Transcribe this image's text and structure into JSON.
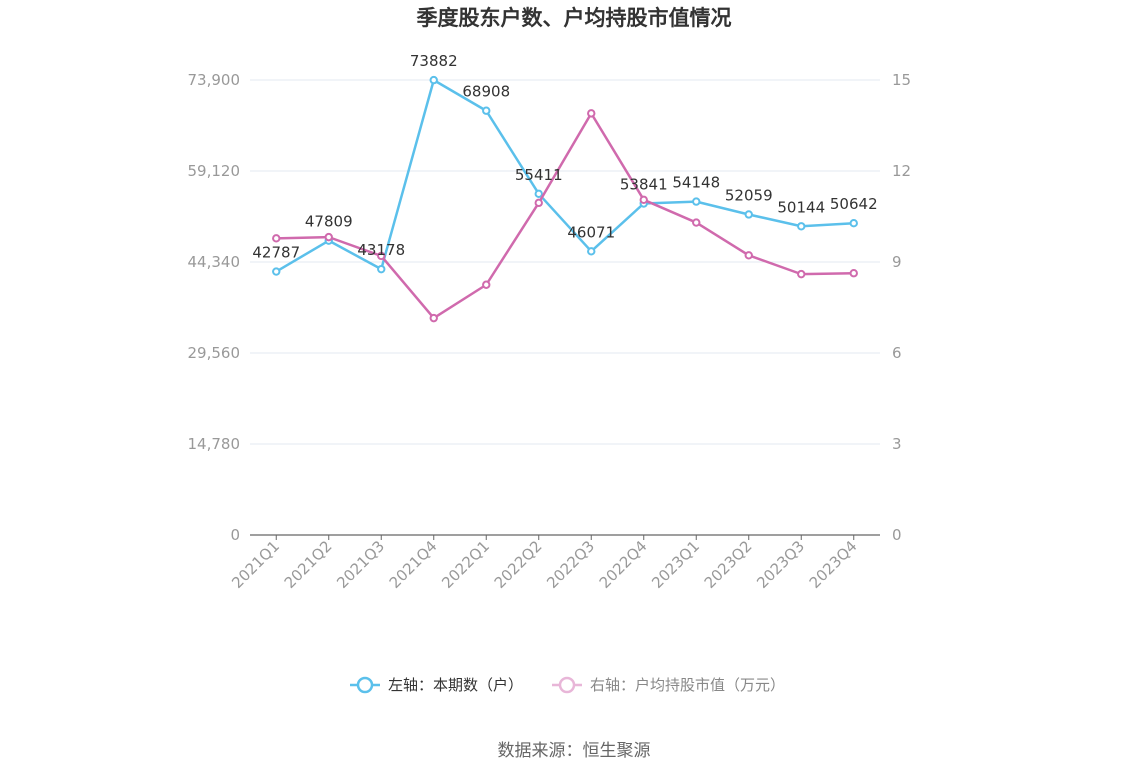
{
  "chart_data": {
    "type": "line",
    "title": "季度股东户数、户均持股市值情况",
    "categories": [
      "2021Q1",
      "2021Q2",
      "2021Q3",
      "2021Q4",
      "2022Q1",
      "2022Q2",
      "2022Q3",
      "2022Q4",
      "2023Q1",
      "2023Q2",
      "2023Q3",
      "2023Q4"
    ],
    "series": [
      {
        "name": "左轴：本期数（户）",
        "axis": "left",
        "color": "#5bc0eb",
        "values": [
          42787,
          47809,
          43178,
          73882,
          68908,
          55411,
          46071,
          53841,
          54148,
          52059,
          50144,
          50642
        ],
        "data_labels": [
          "42787",
          "47809",
          "43178",
          "73882",
          "68908",
          "55411",
          "46071",
          "53841",
          "54148",
          "52059",
          "50144",
          "50642"
        ]
      },
      {
        "name": "右轴：户均持股市值（万元）",
        "axis": "right",
        "color": "#d06aad",
        "values": [
          9.78,
          9.82,
          9.2,
          7.15,
          8.25,
          10.95,
          13.9,
          11.05,
          10.3,
          9.22,
          8.6,
          8.63
        ]
      }
    ],
    "y_left": {
      "min": 0,
      "max": 73900,
      "ticks": [
        0,
        14780,
        29560,
        44340,
        59120,
        73900
      ],
      "tick_labels": [
        "0",
        "14,780",
        "29,560",
        "44,340",
        "59,120",
        "73,900"
      ]
    },
    "y_right": {
      "min": 0,
      "max": 15,
      "ticks": [
        0,
        3,
        6,
        9,
        12,
        15
      ],
      "tick_labels": [
        "0",
        "3",
        "6",
        "9",
        "12",
        "15"
      ]
    },
    "grid": true,
    "legend_position": "bottom",
    "source": "数据来源：恒生聚源"
  }
}
